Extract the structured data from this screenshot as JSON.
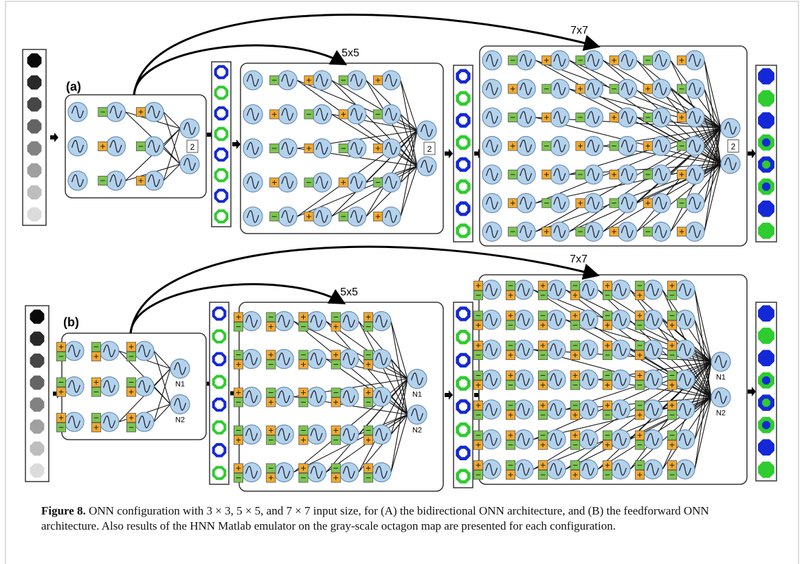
{
  "panels": [
    {
      "label": "(a)",
      "size_labels": [
        "5x5",
        "7x7"
      ],
      "stride_label": "2"
    },
    {
      "label": "(b)",
      "size_labels": [
        "5x5",
        "7x7"
      ],
      "output_labels": [
        "N1",
        "N2"
      ]
    }
  ],
  "caption": {
    "label": "Figure 8.",
    "text": "ONN configuration with 3 × 3, 5 × 5, and 7 × 7 input size, for (A) the bidirectional ONN architecture, and (B) the feedforward ONN architecture. Also results of the HNN Matlab emulator on the gray-scale octagon map are presented for each configuration."
  }
}
